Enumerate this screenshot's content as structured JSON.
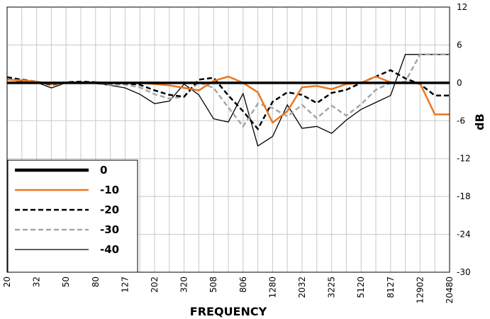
{
  "chart_data": {
    "type": "line",
    "xlabel": "FREQUENCY",
    "ylabel": "dB",
    "ylim": [
      -30,
      12
    ],
    "y_ticks": [
      12,
      6,
      0,
      -6,
      -12,
      -18,
      -24,
      -30
    ],
    "y_axis_side": "right",
    "grid": true,
    "legend_position": "bottom-left",
    "x_tick_labels": [
      "20",
      "32",
      "50",
      "80",
      "127",
      "202",
      "320",
      "508",
      "806",
      "1280",
      "2032",
      "3225",
      "5120",
      "8127",
      "12902",
      "20480"
    ],
    "x_points_per_label_step": 2,
    "colors": {
      "0": "#000000",
      "-10": "#e87722",
      "-20": "#000000",
      "-30": "#a6a6a6",
      "-40": "#000000",
      "grid": "#c8c8c8"
    },
    "series": [
      {
        "name": "0",
        "style": "solid-thick",
        "values": [
          0,
          0,
          0,
          0,
          0,
          0,
          0,
          0,
          0,
          0,
          0,
          0,
          0,
          0,
          0,
          0,
          0,
          0,
          0,
          0,
          0,
          0,
          0,
          0,
          0,
          0,
          0,
          0,
          0,
          0,
          0
        ]
      },
      {
        "name": "-10",
        "style": "solid-orange",
        "values": [
          0.5,
          0.4,
          0.2,
          -0.2,
          0,
          0.1,
          0,
          0,
          0,
          0,
          -0.2,
          -0.4,
          -0.8,
          -1.2,
          0.3,
          1,
          0,
          -1.5,
          -6.3,
          -4.5,
          -0.7,
          -0.5,
          -1,
          -0.2,
          0,
          1,
          0.1,
          0,
          -0.1,
          -5,
          -5
        ]
      },
      {
        "name": "-20",
        "style": "dashed-black",
        "values": [
          0.9,
          0.5,
          0.2,
          -0.3,
          0.1,
          0.2,
          0.1,
          -0.1,
          -0.1,
          -0.3,
          -1.2,
          -1.9,
          -2.2,
          0.5,
          0.8,
          -2,
          -4.5,
          -7.3,
          -3,
          -1.5,
          -1.9,
          -3.2,
          -1.6,
          -1.1,
          0,
          1,
          2,
          0.7,
          -0.2,
          -2,
          -2
        ]
      },
      {
        "name": "-30",
        "style": "dashed-gray",
        "values": [
          0.7,
          0.3,
          0.2,
          -0.4,
          0,
          0.1,
          0,
          -0.3,
          -0.3,
          -0.7,
          -1.8,
          -2.5,
          -2.2,
          0.1,
          -0.8,
          -3.9,
          -6.9,
          -3.3,
          -4,
          -5.3,
          -3.5,
          -5.6,
          -3.6,
          -5.2,
          -3.4,
          -1.1,
          0,
          0.2,
          4.5,
          4.5,
          4.5
        ]
      },
      {
        "name": "-40",
        "style": "solid-thin",
        "values": [
          0.1,
          0.2,
          0.1,
          -0.8,
          0,
          0.1,
          -0.1,
          -0.4,
          -0.8,
          -1.8,
          -3.3,
          -2.9,
          -0.2,
          -1.9,
          -5.7,
          -6.2,
          -1.7,
          -10,
          -8.5,
          -3.5,
          -7.2,
          -6.9,
          -8,
          -5.9,
          -4.2,
          -3.1,
          -2,
          4.5,
          4.5,
          4.5,
          4.5
        ]
      }
    ]
  }
}
